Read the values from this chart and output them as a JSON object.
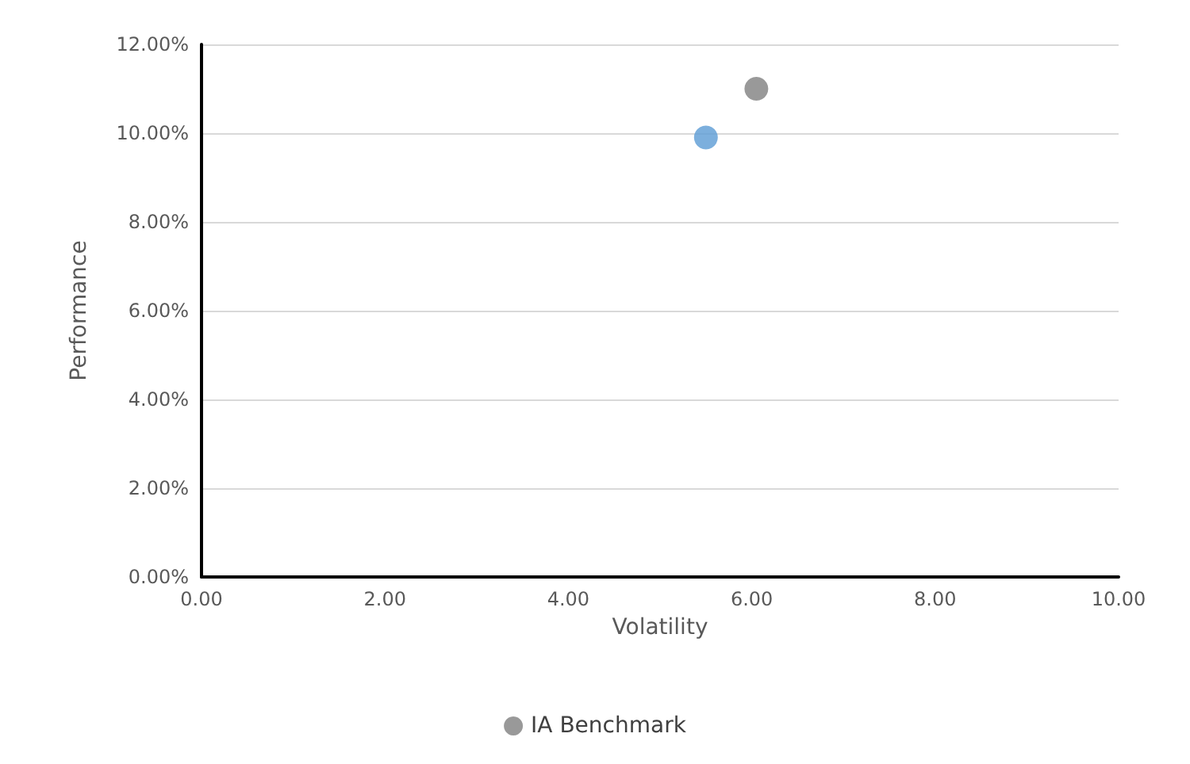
{
  "chart_data": {
    "type": "scatter",
    "xlabel": "Volatility",
    "ylabel": "Performance",
    "xlim": [
      0,
      10
    ],
    "xticks": [
      {
        "value": 0,
        "label": "0.00"
      },
      {
        "value": 2,
        "label": "2.00"
      },
      {
        "value": 4,
        "label": "4.00"
      },
      {
        "value": 6,
        "label": "6.00"
      },
      {
        "value": 8,
        "label": "8.00"
      },
      {
        "value": 10,
        "label": "10.00"
      }
    ],
    "ylim": [
      0,
      12
    ],
    "yticks": [
      {
        "value": 0,
        "label": "0.00%"
      },
      {
        "value": 2,
        "label": "2.00%"
      },
      {
        "value": 4,
        "label": "4.00%"
      },
      {
        "value": 6,
        "label": "6.00%"
      },
      {
        "value": 8,
        "label": "8.00%"
      },
      {
        "value": 10,
        "label": "10.00%"
      },
      {
        "value": 12,
        "label": "12.00%"
      }
    ],
    "series": [
      {
        "color": "#5b9bd5",
        "x": [
          5.5
        ],
        "values": [
          9.9
        ]
      },
      {
        "name": "IA Benchmark",
        "color": "#7f7f7f",
        "x": [
          6.05
        ],
        "values": [
          11.0
        ]
      }
    ],
    "grid": "y",
    "legend": "bottom",
    "marker": "circle"
  }
}
